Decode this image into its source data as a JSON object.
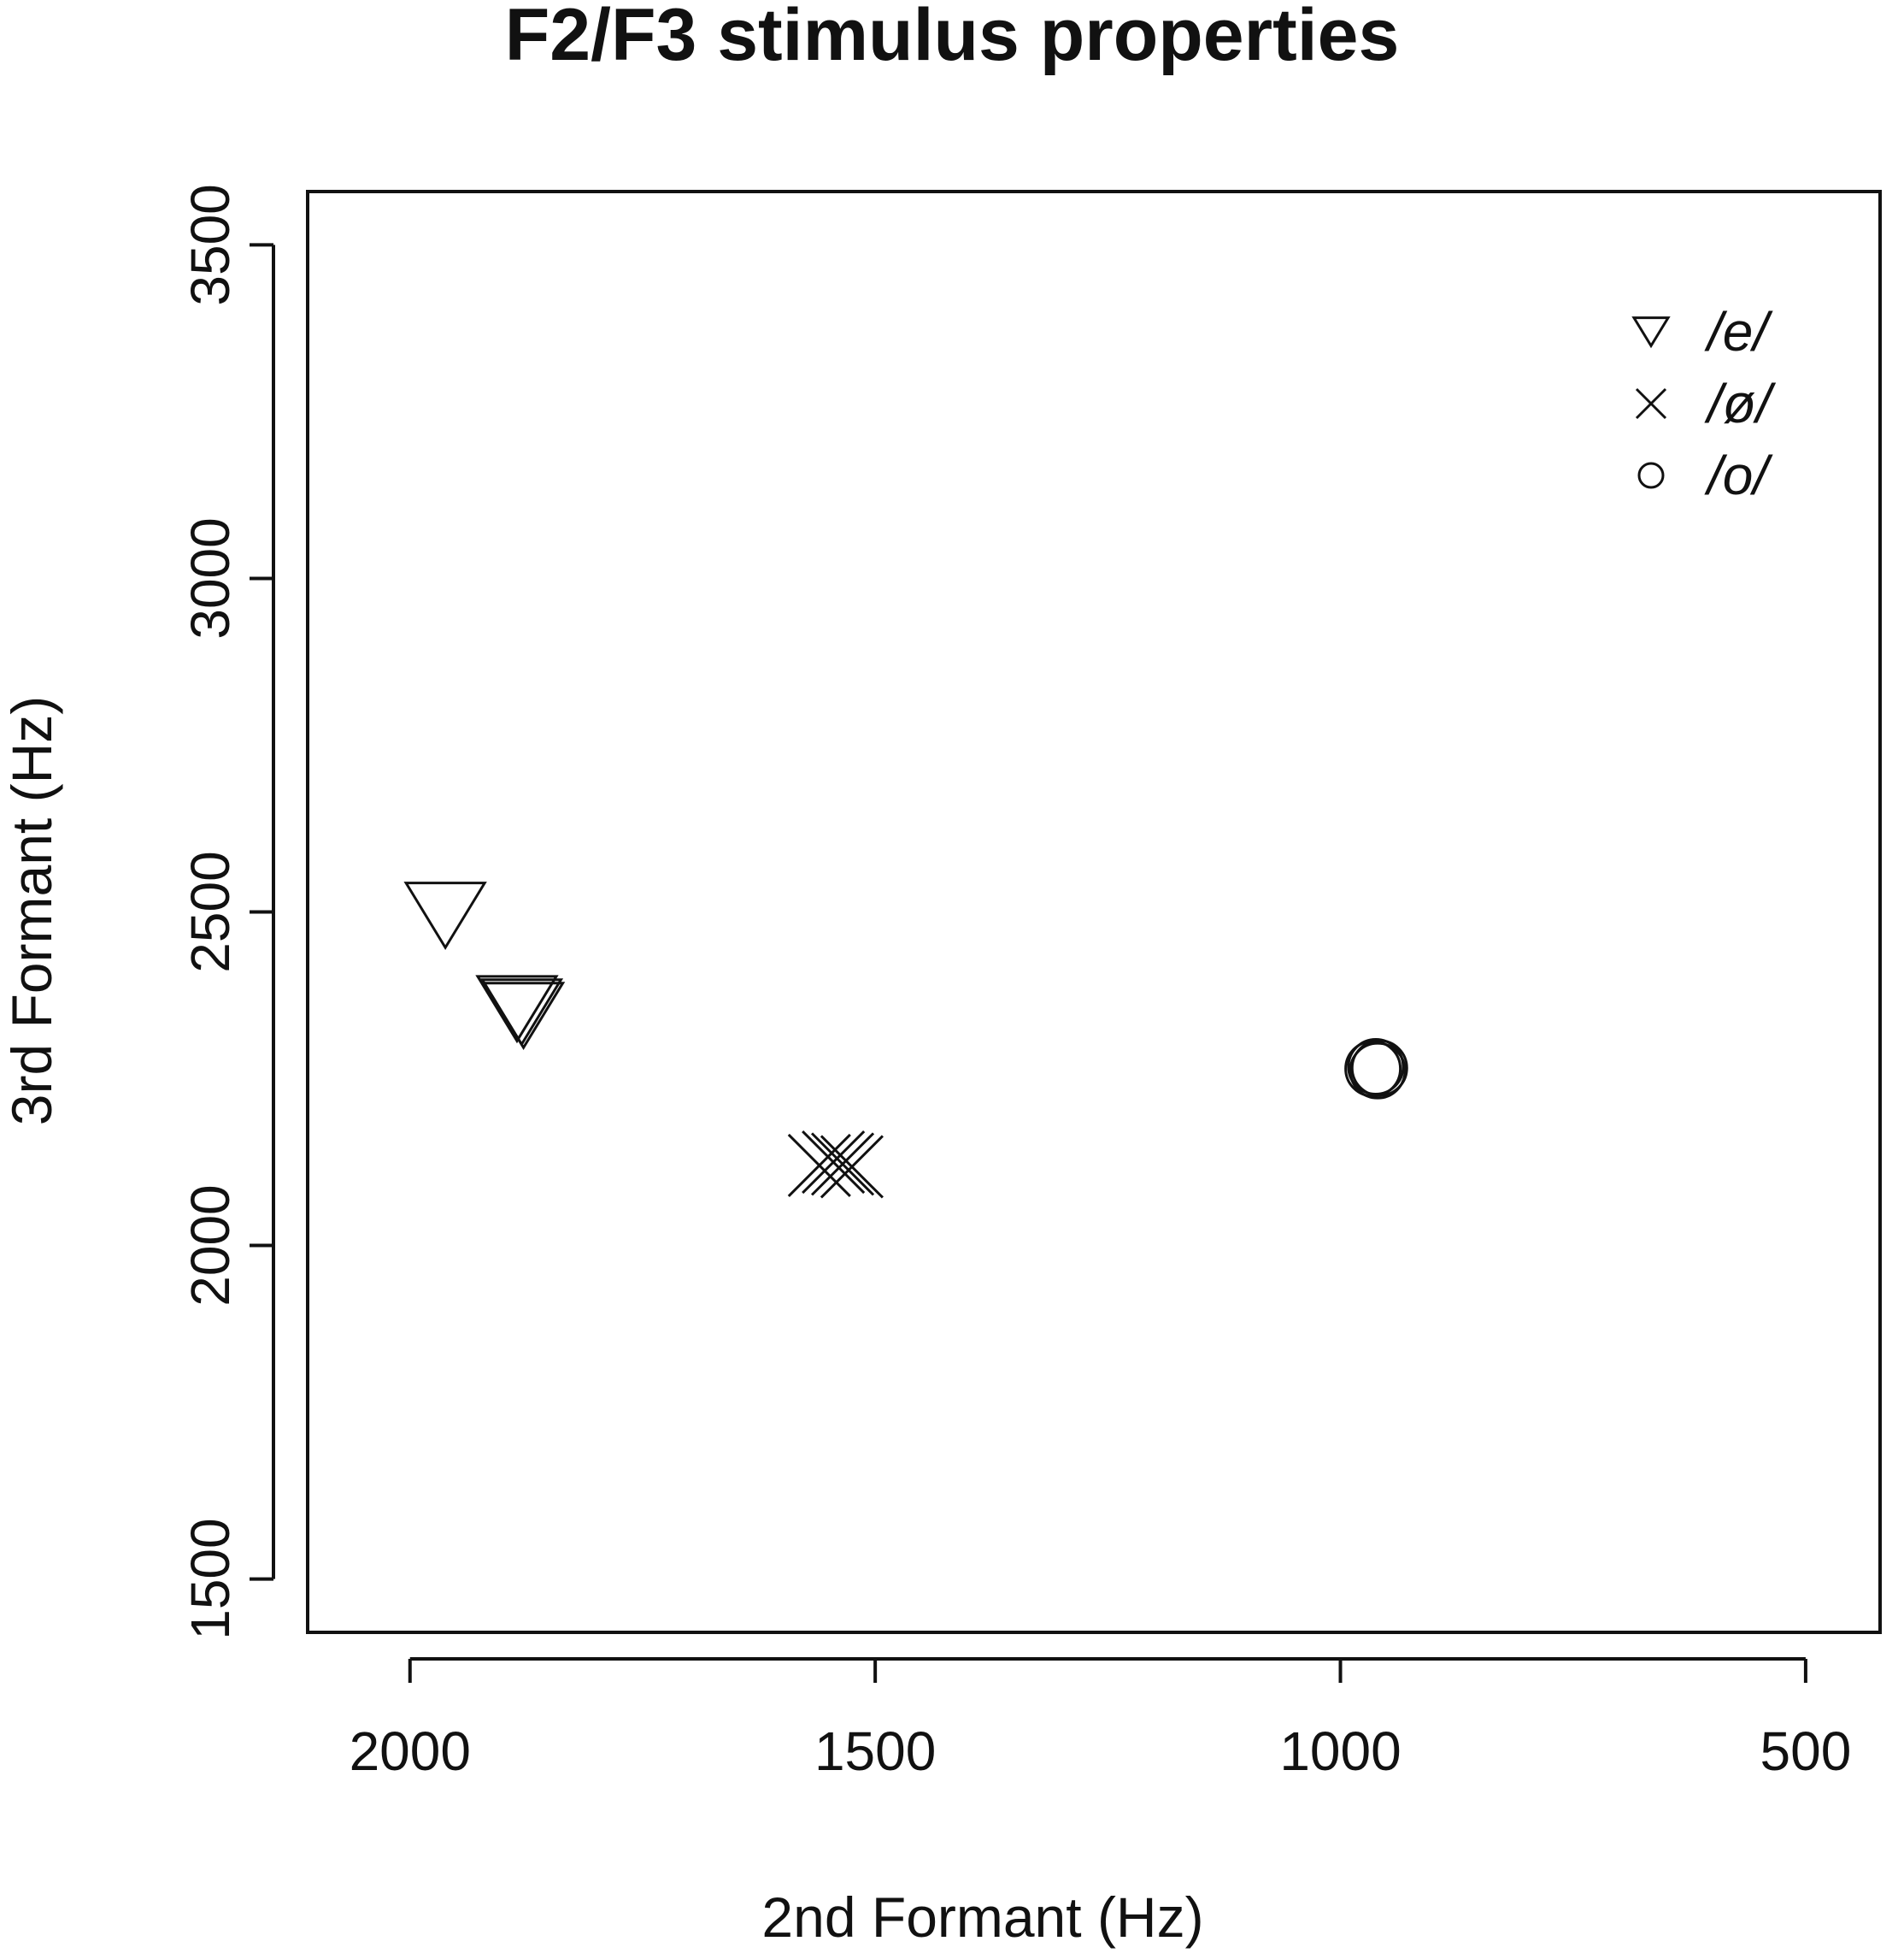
{
  "chart_data": {
    "type": "scatter",
    "title": "F2/F3 stimulus properties",
    "xlabel": "2nd Formant (Hz)",
    "ylabel": "3rd Formant (Hz)",
    "x_reversed": true,
    "xlim": [
      2110,
      420
    ],
    "ylim": [
      1420,
      3580
    ],
    "x_ticks": [
      2000,
      1500,
      1000,
      500
    ],
    "x_tick_labels": [
      "2000",
      "1500",
      "1000",
      "500"
    ],
    "y_ticks": [
      1500,
      2000,
      2500,
      3000,
      3500
    ],
    "y_tick_labels": [
      "1500",
      "2000",
      "2500",
      "3000",
      "3500"
    ],
    "grid": false,
    "legend_position": "top-right",
    "series": [
      {
        "name": "/e/",
        "marker": "triangle-down",
        "points": [
          {
            "x": 1962,
            "y": 2495
          },
          {
            "x": 1885,
            "y": 2355
          },
          {
            "x": 1880,
            "y": 2350
          },
          {
            "x": 1878,
            "y": 2345
          }
        ]
      },
      {
        "name": "/ø/",
        "marker": "x",
        "points": [
          {
            "x": 1560,
            "y": 2120
          },
          {
            "x": 1545,
            "y": 2125
          },
          {
            "x": 1535,
            "y": 2122
          },
          {
            "x": 1525,
            "y": 2118
          }
        ]
      },
      {
        "name": "/o/",
        "marker": "circle",
        "points": [
          {
            "x": 965,
            "y": 2265
          },
          {
            "x": 962,
            "y": 2268
          },
          {
            "x": 960,
            "y": 2262
          },
          {
            "x": 958,
            "y": 2266
          }
        ]
      }
    ]
  }
}
